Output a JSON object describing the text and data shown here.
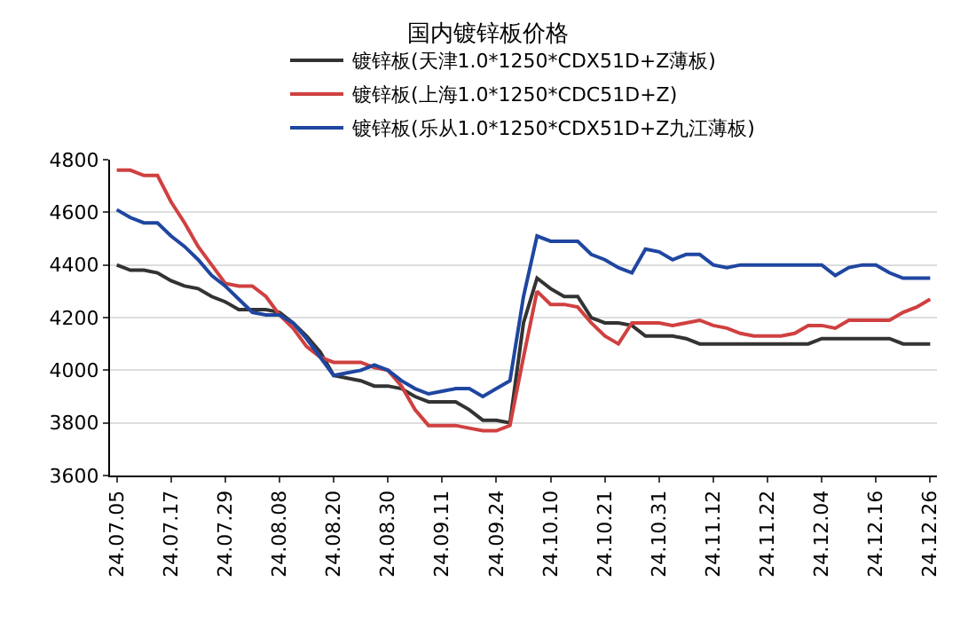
{
  "chart_data": {
    "type": "line",
    "title": "国内镀锌板价格",
    "categories": [
      "24.07.05",
      null,
      null,
      null,
      "24.07.17",
      null,
      null,
      null,
      "24.07.29",
      null,
      null,
      null,
      "24.08.08",
      null,
      null,
      null,
      "24.08.20",
      null,
      null,
      null,
      "24.08.30",
      null,
      null,
      null,
      "24.09.11",
      null,
      null,
      null,
      "24.09.24",
      null,
      null,
      null,
      "24.10.10",
      null,
      null,
      null,
      "24.10.21",
      null,
      null,
      null,
      "24.10.31",
      null,
      null,
      null,
      "24.11.12",
      null,
      null,
      null,
      "24.11.22",
      null,
      null,
      null,
      "24.12.04",
      null,
      null,
      null,
      "24.12.16",
      null,
      null,
      null,
      "24.12.26"
    ],
    "series": [
      {
        "name": "镀锌板(天津1.0*1250*CDX51D+Z薄板)",
        "color": "#333333",
        "values": [
          4400,
          4380,
          4380,
          4370,
          4340,
          4320,
          4310,
          4280,
          4260,
          4230,
          4230,
          4230,
          4220,
          4180,
          4130,
          4070,
          3980,
          3970,
          3960,
          3940,
          3940,
          3930,
          3900,
          3880,
          3880,
          3880,
          3850,
          3810,
          3810,
          3800,
          4180,
          4350,
          4310,
          4280,
          4280,
          4200,
          4180,
          4180,
          4170,
          4130,
          4130,
          4130,
          4120,
          4100,
          4100,
          4100,
          4100,
          4100,
          4100,
          4100,
          4100,
          4100,
          4120,
          4120,
          4120,
          4120,
          4120,
          4120,
          4100,
          4100,
          4100
        ]
      },
      {
        "name": "镀锌板(上海1.0*1250*CDC51D+Z)",
        "color": "#d04040",
        "values": [
          4760,
          4760,
          4740,
          4740,
          4640,
          4560,
          4470,
          4400,
          4330,
          4320,
          4320,
          4280,
          4210,
          4160,
          4090,
          4050,
          4030,
          4030,
          4030,
          4010,
          4000,
          3940,
          3850,
          3790,
          3790,
          3790,
          3780,
          3770,
          3770,
          3790,
          4050,
          4300,
          4250,
          4250,
          4240,
          4180,
          4130,
          4100,
          4180,
          4180,
          4180,
          4170,
          4180,
          4190,
          4170,
          4160,
          4140,
          4130,
          4130,
          4130,
          4140,
          4170,
          4170,
          4160,
          4190,
          4190,
          4190,
          4190,
          4220,
          4240,
          4270
        ]
      },
      {
        "name": "镀锌板(乐从1.0*1250*CDX51D+Z九江薄板)",
        "color": "#1f46a0",
        "values": [
          4610,
          4580,
          4560,
          4560,
          4510,
          4470,
          4420,
          4360,
          4320,
          4270,
          4220,
          4210,
          4210,
          4180,
          4120,
          4050,
          3980,
          3990,
          4000,
          4020,
          4000,
          3960,
          3930,
          3910,
          3920,
          3930,
          3930,
          3900,
          3930,
          3960,
          4280,
          4510,
          4490,
          4490,
          4490,
          4440,
          4420,
          4390,
          4370,
          4460,
          4450,
          4420,
          4440,
          4440,
          4400,
          4390,
          4400,
          4400,
          4400,
          4400,
          4400,
          4400,
          4400,
          4360,
          4390,
          4400,
          4400,
          4370,
          4350,
          4350,
          4350
        ]
      }
    ],
    "ylim": [
      3600,
      4800
    ],
    "yticks": [
      3600,
      3800,
      4000,
      4200,
      4400,
      4600,
      4800
    ],
    "grid": "y",
    "legend": "top",
    "marker": "none",
    "line_style": "solid"
  }
}
